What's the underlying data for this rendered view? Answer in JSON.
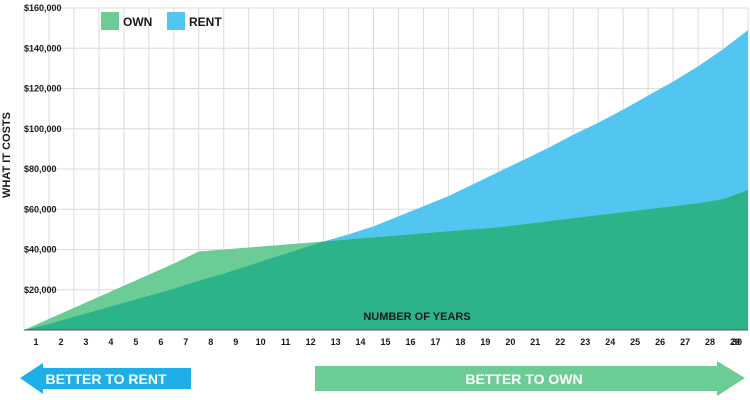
{
  "chart_data": {
    "type": "area",
    "xlabel": "NUMBER OF YEARS",
    "ylabel": "WHAT IT COSTS",
    "x": [
      1,
      2,
      3,
      4,
      5,
      6,
      7,
      8,
      9,
      10,
      11,
      12,
      13,
      14,
      15,
      16,
      17,
      18,
      19,
      20,
      21,
      22,
      23,
      24,
      25,
      26,
      27,
      28,
      29,
      30
    ],
    "x_tick_labels": [
      "1",
      "2",
      "3",
      "4",
      "5",
      "6",
      "7",
      "8",
      "9",
      "10",
      "11",
      "12",
      "13",
      "14",
      "15",
      "16",
      "17",
      "18",
      "19",
      "20",
      "21",
      "22",
      "23",
      "24",
      "25",
      "26",
      "27",
      "28",
      "29",
      "30"
    ],
    "ylim": [
      0,
      160000
    ],
    "y_ticks": [
      20000,
      40000,
      60000,
      80000,
      100000,
      120000,
      140000,
      160000
    ],
    "y_tick_labels": [
      "$20,000",
      "$40,000",
      "$60,000",
      "$80,000",
      "$100,000",
      "$120,000",
      "$140,000",
      "$160,000"
    ],
    "grid": true,
    "legend_position": "top-left",
    "series": [
      {
        "name": "OWN",
        "color": "#6ccc96",
        "values": [
          0,
          5500,
          11000,
          16500,
          22000,
          27500,
          33000,
          39000,
          40000,
          41000,
          42000,
          43000,
          44000,
          45000,
          46000,
          47000,
          48000,
          49000,
          50000,
          51000,
          52500,
          54000,
          55500,
          57000,
          58500,
          60000,
          61500,
          63000,
          65000,
          69500
        ]
      },
      {
        "name": "RENT",
        "color": "#52c5f0",
        "values": [
          0,
          3000,
          6500,
          10000,
          13500,
          17000,
          20500,
          24500,
          28000,
          32000,
          36000,
          40000,
          44000,
          47500,
          51500,
          56500,
          61500,
          66500,
          72500,
          78500,
          84500,
          90500,
          97000,
          103000,
          109500,
          116500,
          123500,
          131000,
          139500,
          149000
        ]
      }
    ],
    "overlap_color": "#2db38a",
    "annotations": {
      "left_arrow": "BETTER TO RENT",
      "right_arrow": "BETTER TO OWN",
      "left_arrow_color": "#1eaee8",
      "right_arrow_color": "#6ccc96"
    }
  }
}
